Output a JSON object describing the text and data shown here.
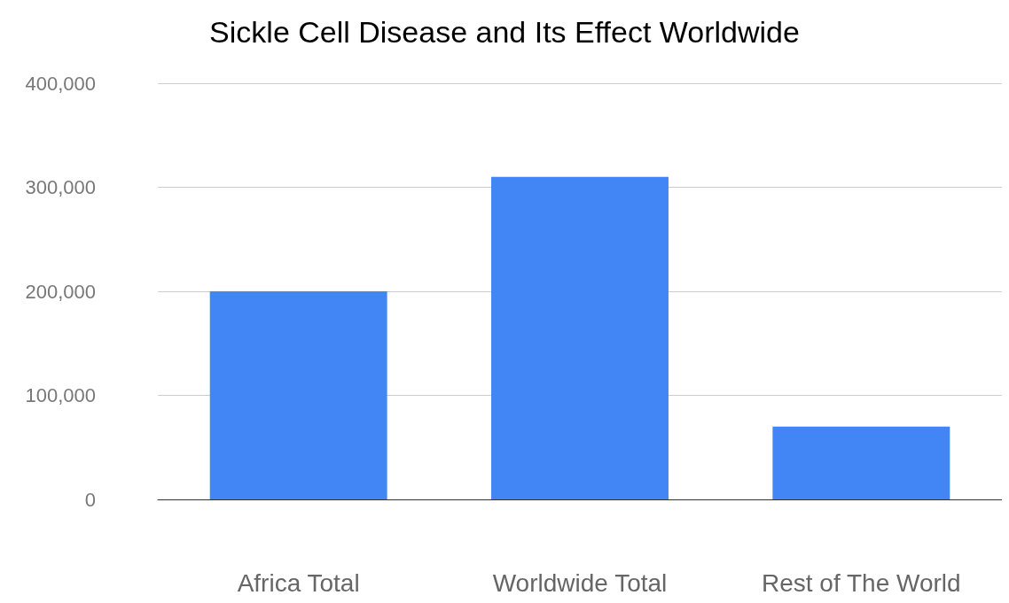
{
  "chart_data": {
    "type": "bar",
    "title": "Sickle Cell Disease and Its Effect Worldwide",
    "categories": [
      "Africa Total",
      "Worldwide Total",
      "Rest of The World"
    ],
    "values": [
      200000,
      310000,
      70000
    ],
    "color": "#4285f4",
    "ylim": [
      0,
      400000
    ],
    "yticks": [
      {
        "value": 0,
        "label": "0"
      },
      {
        "value": 100000,
        "label": "100,000"
      },
      {
        "value": 200000,
        "label": "200,000"
      },
      {
        "value": 300000,
        "label": "300,000"
      },
      {
        "value": 400000,
        "label": "400,000"
      }
    ],
    "grid": true
  }
}
